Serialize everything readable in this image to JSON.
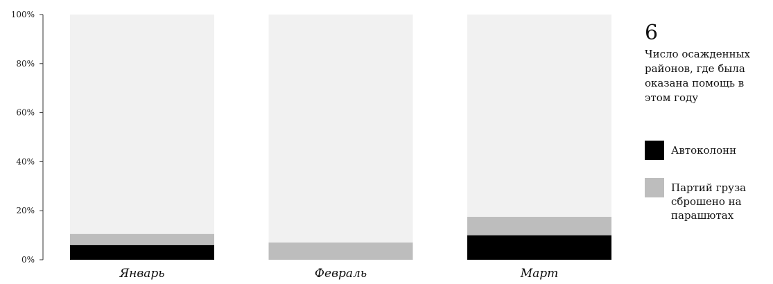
{
  "chart_data": {
    "type": "bar",
    "stacked": true,
    "categories": [
      "Январь",
      "Февраль",
      "Март"
    ],
    "series": [
      {
        "name": "Автоколонн",
        "values": [
          6,
          0,
          10
        ],
        "color": "#000000"
      },
      {
        "name": "Партий груза сброшено на парашютах",
        "values": [
          4.5,
          7,
          7.5
        ],
        "color": "#bdbdbd"
      }
    ],
    "background_bar_color": "#f1f1f1",
    "ylim": [
      0,
      100
    ],
    "yticks": [
      "0%",
      "20%",
      "40%",
      "60%",
      "80%",
      "100%"
    ],
    "grid": false,
    "legend_position": "right"
  },
  "side": {
    "number": "6",
    "description": "Число осажденных районов, где была оказана помощь в этом году"
  },
  "legend": [
    {
      "label": "Автоколонн",
      "color": "#000000"
    },
    {
      "label": "Партий груза сброшено на парашютах",
      "color": "#bdbdbd"
    }
  ]
}
